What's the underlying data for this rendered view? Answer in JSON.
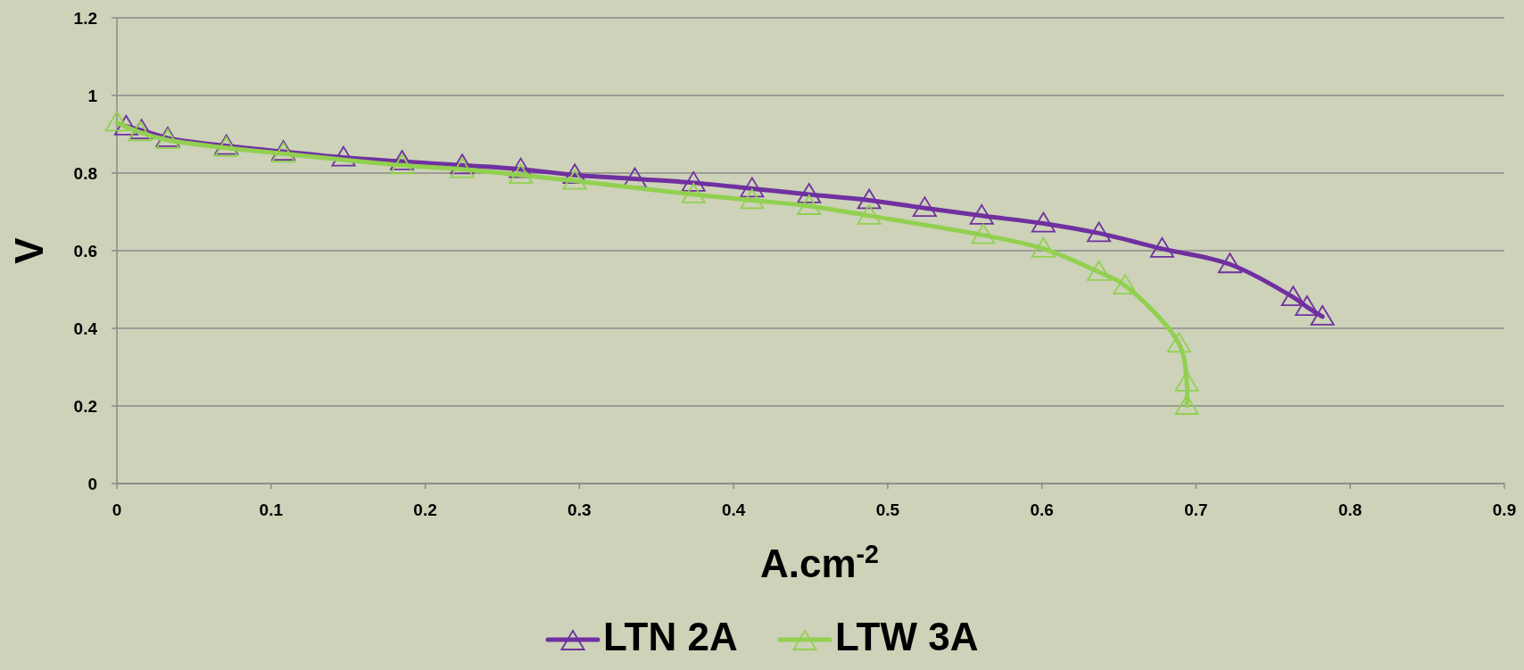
{
  "chart_data": {
    "type": "line",
    "xlabel": "A.cm$^{-2}$",
    "ylabel": "V",
    "xlim": [
      0,
      0.9
    ],
    "xticks": [
      0,
      0.1,
      0.2,
      0.3,
      0.4,
      0.5,
      0.6,
      0.7,
      0.8,
      0.9
    ],
    "ylim": [
      0,
      1.2
    ],
    "yticks": [
      0,
      0.2,
      0.4,
      0.6,
      0.8,
      1,
      1.2
    ],
    "grid": "y",
    "legend": "bottom",
    "marker": "triangle",
    "line_style": "solid",
    "series": [
      {
        "name": "LTN 2A",
        "color": "#7030a0",
        "x": [
          0.006,
          0.016,
          0.033,
          0.071,
          0.108,
          0.147,
          0.185,
          0.224,
          0.262,
          0.297,
          0.336,
          0.374,
          0.412,
          0.449,
          0.488,
          0.524,
          0.561,
          0.601,
          0.637,
          0.678,
          0.722,
          0.763,
          0.772,
          0.782
        ],
        "values": [
          0.92,
          0.91,
          0.89,
          0.87,
          0.855,
          0.84,
          0.83,
          0.82,
          0.81,
          0.795,
          0.785,
          0.775,
          0.76,
          0.745,
          0.73,
          0.71,
          0.69,
          0.67,
          0.645,
          0.605,
          0.565,
          0.48,
          0.455,
          0.43
        ]
      },
      {
        "name": "LTW 3A",
        "color": "#92d050",
        "x": [
          0,
          0.015,
          0.033,
          0.071,
          0.108,
          0.185,
          0.224,
          0.262,
          0.297,
          0.374,
          0.412,
          0.449,
          0.488,
          0.562,
          0.601,
          0.637,
          0.654,
          0.689,
          0.694,
          0.694
        ],
        "values": [
          0.93,
          0.905,
          0.885,
          0.865,
          0.85,
          0.82,
          0.81,
          0.795,
          0.78,
          0.745,
          0.73,
          0.715,
          0.69,
          0.64,
          0.605,
          0.545,
          0.51,
          0.36,
          0.26,
          0.2
        ]
      }
    ]
  }
}
